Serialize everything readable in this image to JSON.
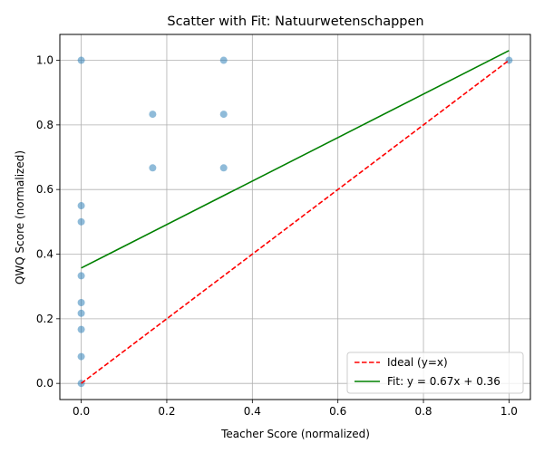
{
  "chart_data": {
    "type": "scatter",
    "title": "Scatter with Fit: Natuurwetenschappen",
    "xlabel": "Teacher Score (normalized)",
    "ylabel": "QWQ Score (normalized)",
    "xlim": [
      -0.05,
      1.05
    ],
    "ylim": [
      -0.05,
      1.08
    ],
    "xticks": [
      "0.0",
      "0.2",
      "0.4",
      "0.6",
      "0.8",
      "1.0"
    ],
    "xtick_values": [
      0.0,
      0.2,
      0.4,
      0.6,
      0.8,
      1.0
    ],
    "yticks": [
      "0.0",
      "0.2",
      "0.4",
      "0.6",
      "0.8",
      "1.0"
    ],
    "ytick_values": [
      0.0,
      0.2,
      0.4,
      0.6,
      0.8,
      1.0
    ],
    "grid": true,
    "legend_position": "lower-right",
    "series": [
      {
        "kind": "points",
        "color": "#1f77b4",
        "points": [
          {
            "x": 0.0,
            "y": 1.0
          },
          {
            "x": 0.0,
            "y": 0.55
          },
          {
            "x": 0.0,
            "y": 0.5
          },
          {
            "x": 0.0,
            "y": 0.333
          },
          {
            "x": 0.0,
            "y": 0.25
          },
          {
            "x": 0.0,
            "y": 0.217
          },
          {
            "x": 0.0,
            "y": 0.167
          },
          {
            "x": 0.0,
            "y": 0.083
          },
          {
            "x": 0.0,
            "y": 0.0
          },
          {
            "x": 0.167,
            "y": 0.833
          },
          {
            "x": 0.167,
            "y": 0.667
          },
          {
            "x": 0.333,
            "y": 1.0
          },
          {
            "x": 0.333,
            "y": 0.833
          },
          {
            "x": 0.333,
            "y": 0.667
          },
          {
            "x": 1.0,
            "y": 1.0
          }
        ]
      },
      {
        "kind": "line",
        "name": "Ideal (y=x)",
        "color": "#ff0000",
        "dashed": true,
        "x": [
          0.0,
          1.0
        ],
        "y": [
          0.0,
          1.0
        ]
      },
      {
        "kind": "line",
        "name": "Fit: y = 0.67x + 0.36",
        "color": "#008000",
        "dashed": false,
        "x": [
          0.0,
          1.0
        ],
        "y": [
          0.357,
          1.03
        ]
      }
    ]
  }
}
